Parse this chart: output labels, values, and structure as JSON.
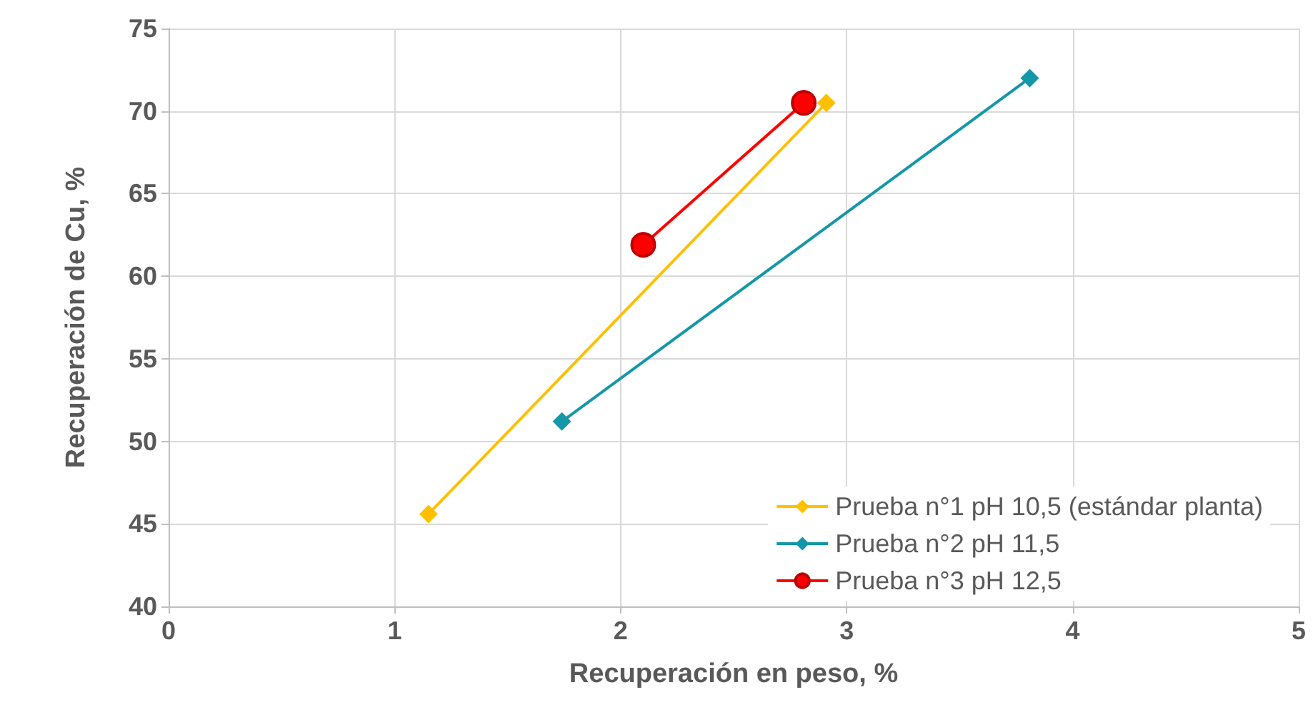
{
  "chart_data": {
    "type": "line",
    "xlabel": "Recuperación en peso, %",
    "ylabel": "Recuperación de Cu, %",
    "xlim": [
      0,
      5
    ],
    "xticks": [
      0,
      1,
      2,
      3,
      4,
      5
    ],
    "ylim": [
      40,
      75
    ],
    "yticks": [
      40,
      45,
      50,
      55,
      60,
      65,
      70,
      75
    ],
    "grid": true,
    "legend": "bottom right",
    "series": [
      {
        "name": "Prueba n°1 pH 10,5 (estándar planta)",
        "color": "#ffc000",
        "marker": "diamond",
        "x": [
          1.15,
          2.91
        ],
        "values": [
          45.6,
          70.5
        ]
      },
      {
        "name": "Prueba n°2 pH 11,5",
        "color": "#1497a8",
        "marker": "diamond",
        "x": [
          1.74,
          3.81
        ],
        "values": [
          51.2,
          72.0
        ]
      },
      {
        "name": "Prueba n°3 pH 12,5",
        "color": "#ff0000",
        "marker": "circle",
        "x": [
          2.1,
          2.81
        ],
        "values": [
          61.9,
          70.5
        ]
      }
    ]
  }
}
